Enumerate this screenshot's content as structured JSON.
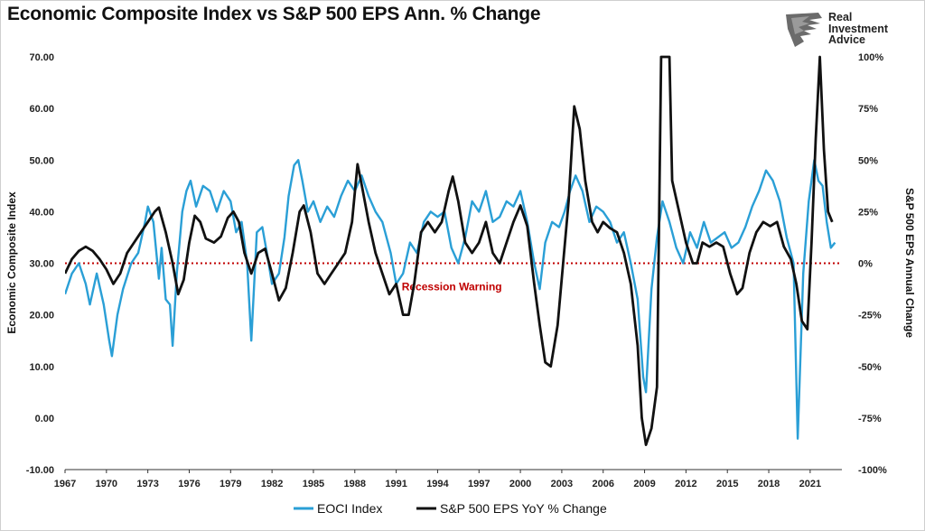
{
  "chart_data": {
    "type": "line",
    "title": "Economic Composite Index vs S&P 500 EPS Ann. % Change",
    "ylabel_left": "Economic Composite Index",
    "ylabel_right": "S&P 500 EPS Annual Change",
    "xlabel": "",
    "xlim": [
      1967,
      2023.3
    ],
    "ylim_left": [
      -10,
      70
    ],
    "ylim_right": [
      -100,
      100
    ],
    "x_ticks": [
      "1967",
      "1970",
      "1973",
      "1976",
      "1979",
      "1982",
      "1985",
      "1988",
      "1991",
      "1994",
      "1997",
      "2000",
      "2003",
      "2006",
      "2009",
      "2012",
      "2015",
      "2018",
      "2021"
    ],
    "y_ticks_left": [
      "70.00",
      "60.00",
      "50.00",
      "40.00",
      "30.00",
      "20.00",
      "10.00",
      "0.00",
      "-10.00"
    ],
    "y_ticks_right": [
      "100%",
      "75%",
      "50%",
      "25%",
      "0%",
      "-25%",
      "-50%",
      "-75%",
      "-100%"
    ],
    "grid": false,
    "legend_position": "bottom",
    "threshold": {
      "label": "Recession Warning",
      "value": 30,
      "axis": "left",
      "color": "#c00000"
    },
    "series": [
      {
        "name": "EOCI Index",
        "axis": "left",
        "color": "#2a9fd6",
        "points": [
          [
            1967.0,
            24
          ],
          [
            1967.5,
            28
          ],
          [
            1968.0,
            30
          ],
          [
            1968.5,
            26
          ],
          [
            1968.8,
            22
          ],
          [
            1969.3,
            28
          ],
          [
            1969.8,
            22
          ],
          [
            1970.2,
            15
          ],
          [
            1970.4,
            12
          ],
          [
            1970.8,
            20
          ],
          [
            1971.2,
            25
          ],
          [
            1971.8,
            30
          ],
          [
            1972.3,
            32
          ],
          [
            1972.8,
            38
          ],
          [
            1973.0,
            41
          ],
          [
            1973.4,
            38
          ],
          [
            1973.8,
            27
          ],
          [
            1974.0,
            33
          ],
          [
            1974.3,
            23
          ],
          [
            1974.6,
            22
          ],
          [
            1974.8,
            14
          ],
          [
            1975.1,
            28
          ],
          [
            1975.5,
            40
          ],
          [
            1975.8,
            44
          ],
          [
            1976.1,
            46
          ],
          [
            1976.5,
            41
          ],
          [
            1977.0,
            45
          ],
          [
            1977.5,
            44
          ],
          [
            1978.0,
            40
          ],
          [
            1978.5,
            44
          ],
          [
            1979.0,
            42
          ],
          [
            1979.4,
            36
          ],
          [
            1979.8,
            38
          ],
          [
            1980.2,
            30
          ],
          [
            1980.5,
            15
          ],
          [
            1980.9,
            36
          ],
          [
            1981.3,
            37
          ],
          [
            1981.7,
            31
          ],
          [
            1982.0,
            26
          ],
          [
            1982.5,
            28
          ],
          [
            1982.9,
            35
          ],
          [
            1983.2,
            43
          ],
          [
            1983.6,
            49
          ],
          [
            1983.9,
            50
          ],
          [
            1984.2,
            46
          ],
          [
            1984.6,
            40
          ],
          [
            1985.0,
            42
          ],
          [
            1985.5,
            38
          ],
          [
            1986.0,
            41
          ],
          [
            1986.5,
            39
          ],
          [
            1987.0,
            43
          ],
          [
            1987.5,
            46
          ],
          [
            1988.0,
            44
          ],
          [
            1988.5,
            47
          ],
          [
            1989.0,
            43
          ],
          [
            1989.5,
            40
          ],
          [
            1990.0,
            38
          ],
          [
            1990.6,
            32
          ],
          [
            1991.0,
            26
          ],
          [
            1991.5,
            28
          ],
          [
            1992.0,
            34
          ],
          [
            1992.5,
            32
          ],
          [
            1993.0,
            38
          ],
          [
            1993.5,
            40
          ],
          [
            1994.0,
            39
          ],
          [
            1994.5,
            40
          ],
          [
            1995.0,
            33
          ],
          [
            1995.5,
            30
          ],
          [
            1996.0,
            35
          ],
          [
            1996.5,
            42
          ],
          [
            1997.0,
            40
          ],
          [
            1997.5,
            44
          ],
          [
            1998.0,
            38
          ],
          [
            1998.5,
            39
          ],
          [
            1999.0,
            42
          ],
          [
            1999.5,
            41
          ],
          [
            2000.0,
            44
          ],
          [
            2000.5,
            38
          ],
          [
            2001.0,
            30
          ],
          [
            2001.4,
            25
          ],
          [
            2001.8,
            34
          ],
          [
            2002.3,
            38
          ],
          [
            2002.8,
            37
          ],
          [
            2003.2,
            40
          ],
          [
            2003.6,
            44
          ],
          [
            2004.0,
            47
          ],
          [
            2004.5,
            44
          ],
          [
            2005.0,
            38
          ],
          [
            2005.5,
            41
          ],
          [
            2006.0,
            40
          ],
          [
            2006.5,
            38
          ],
          [
            2007.0,
            34
          ],
          [
            2007.5,
            36
          ],
          [
            2008.0,
            30
          ],
          [
            2008.5,
            23
          ],
          [
            2008.9,
            8
          ],
          [
            2009.1,
            5
          ],
          [
            2009.5,
            25
          ],
          [
            2009.9,
            35
          ],
          [
            2010.3,
            42
          ],
          [
            2010.8,
            38
          ],
          [
            2011.3,
            33
          ],
          [
            2011.8,
            30
          ],
          [
            2012.3,
            36
          ],
          [
            2012.8,
            33
          ],
          [
            2013.3,
            38
          ],
          [
            2013.8,
            34
          ],
          [
            2014.3,
            35
          ],
          [
            2014.8,
            36
          ],
          [
            2015.3,
            33
          ],
          [
            2015.8,
            34
          ],
          [
            2016.3,
            37
          ],
          [
            2016.8,
            41
          ],
          [
            2017.3,
            44
          ],
          [
            2017.8,
            48
          ],
          [
            2018.3,
            46
          ],
          [
            2018.8,
            42
          ],
          [
            2019.3,
            35
          ],
          [
            2019.8,
            30
          ],
          [
            2020.1,
            -4
          ],
          [
            2020.5,
            28
          ],
          [
            2020.9,
            42
          ],
          [
            2021.3,
            50
          ],
          [
            2021.6,
            46
          ],
          [
            2021.9,
            45
          ],
          [
            2022.2,
            38
          ],
          [
            2022.5,
            33
          ],
          [
            2022.8,
            34
          ]
        ]
      },
      {
        "name": "S&P 500 EPS YoY % Change",
        "axis": "right",
        "color": "#111111",
        "points": [
          [
            1967.0,
            -5
          ],
          [
            1967.5,
            2
          ],
          [
            1968.0,
            6
          ],
          [
            1968.5,
            8
          ],
          [
            1969.0,
            6
          ],
          [
            1969.5,
            2
          ],
          [
            1970.0,
            -3
          ],
          [
            1970.5,
            -10
          ],
          [
            1971.0,
            -5
          ],
          [
            1971.5,
            5
          ],
          [
            1972.0,
            10
          ],
          [
            1972.5,
            15
          ],
          [
            1973.0,
            20
          ],
          [
            1973.5,
            25
          ],
          [
            1973.8,
            27
          ],
          [
            1974.3,
            15
          ],
          [
            1974.8,
            0
          ],
          [
            1975.2,
            -15
          ],
          [
            1975.6,
            -8
          ],
          [
            1976.0,
            10
          ],
          [
            1976.4,
            23
          ],
          [
            1976.8,
            20
          ],
          [
            1977.2,
            12
          ],
          [
            1977.8,
            10
          ],
          [
            1978.3,
            13
          ],
          [
            1978.8,
            22
          ],
          [
            1979.2,
            25
          ],
          [
            1979.6,
            20
          ],
          [
            1980.0,
            5
          ],
          [
            1980.5,
            -5
          ],
          [
            1981.0,
            5
          ],
          [
            1981.5,
            7
          ],
          [
            1982.0,
            -5
          ],
          [
            1982.5,
            -18
          ],
          [
            1983.0,
            -12
          ],
          [
            1983.5,
            5
          ],
          [
            1984.0,
            25
          ],
          [
            1984.3,
            28
          ],
          [
            1984.8,
            15
          ],
          [
            1985.3,
            -5
          ],
          [
            1985.8,
            -10
          ],
          [
            1986.3,
            -5
          ],
          [
            1986.8,
            0
          ],
          [
            1987.3,
            5
          ],
          [
            1987.8,
            20
          ],
          [
            1988.2,
            48
          ],
          [
            1988.5,
            38
          ],
          [
            1989.0,
            20
          ],
          [
            1989.5,
            5
          ],
          [
            1990.0,
            -5
          ],
          [
            1990.5,
            -15
          ],
          [
            1991.0,
            -10
          ],
          [
            1991.5,
            -25
          ],
          [
            1991.9,
            -25
          ],
          [
            1992.3,
            -10
          ],
          [
            1992.8,
            15
          ],
          [
            1993.3,
            20
          ],
          [
            1993.8,
            15
          ],
          [
            1994.3,
            20
          ],
          [
            1994.8,
            35
          ],
          [
            1995.1,
            42
          ],
          [
            1995.5,
            30
          ],
          [
            1996.0,
            10
          ],
          [
            1996.5,
            5
          ],
          [
            1997.0,
            10
          ],
          [
            1997.5,
            20
          ],
          [
            1998.0,
            5
          ],
          [
            1998.5,
            0
          ],
          [
            1999.0,
            10
          ],
          [
            1999.5,
            20
          ],
          [
            2000.0,
            28
          ],
          [
            2000.5,
            18
          ],
          [
            2001.0,
            -10
          ],
          [
            2001.4,
            -30
          ],
          [
            2001.8,
            -48
          ],
          [
            2002.2,
            -50
          ],
          [
            2002.7,
            -30
          ],
          [
            2003.1,
            0
          ],
          [
            2003.5,
            30
          ],
          [
            2003.9,
            76
          ],
          [
            2004.3,
            65
          ],
          [
            2004.7,
            40
          ],
          [
            2005.2,
            20
          ],
          [
            2005.6,
            15
          ],
          [
            2006.0,
            20
          ],
          [
            2006.5,
            17
          ],
          [
            2007.0,
            15
          ],
          [
            2007.5,
            5
          ],
          [
            2008.0,
            -10
          ],
          [
            2008.5,
            -40
          ],
          [
            2008.8,
            -75
          ],
          [
            2009.1,
            -88
          ],
          [
            2009.5,
            -80
          ],
          [
            2009.9,
            -60
          ],
          [
            2010.2,
            100
          ],
          [
            2010.5,
            100
          ],
          [
            2010.8,
            100
          ],
          [
            2011.0,
            40
          ],
          [
            2011.5,
            25
          ],
          [
            2012.0,
            10
          ],
          [
            2012.5,
            0
          ],
          [
            2012.8,
            0
          ],
          [
            2013.2,
            10
          ],
          [
            2013.7,
            8
          ],
          [
            2014.2,
            10
          ],
          [
            2014.7,
            8
          ],
          [
            2015.2,
            -5
          ],
          [
            2015.7,
            -15
          ],
          [
            2016.1,
            -12
          ],
          [
            2016.6,
            5
          ],
          [
            2017.1,
            15
          ],
          [
            2017.6,
            20
          ],
          [
            2018.1,
            18
          ],
          [
            2018.6,
            20
          ],
          [
            2019.1,
            8
          ],
          [
            2019.6,
            2
          ],
          [
            2020.0,
            -10
          ],
          [
            2020.4,
            -28
          ],
          [
            2020.8,
            -32
          ],
          [
            2021.1,
            10
          ],
          [
            2021.4,
            60
          ],
          [
            2021.7,
            100
          ],
          [
            2022.0,
            55
          ],
          [
            2022.3,
            25
          ],
          [
            2022.6,
            20
          ]
        ]
      }
    ]
  },
  "logo": {
    "line1": "Real",
    "line2": "Investment",
    "line3": "Advice"
  }
}
